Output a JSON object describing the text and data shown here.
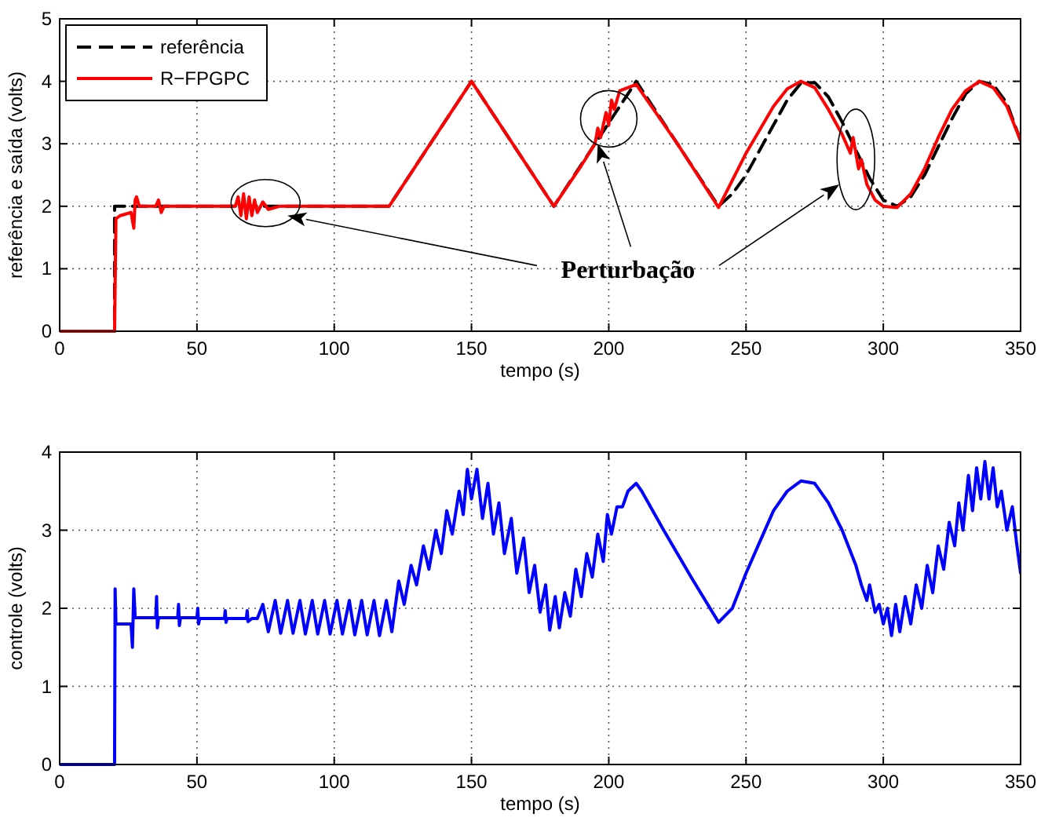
{
  "chart_data": [
    {
      "type": "line",
      "xlabel": "tempo (s)",
      "ylabel": "referência e saída (volts)",
      "xlim": [
        0,
        350
      ],
      "ylim": [
        0,
        5
      ],
      "xticks": [
        0,
        50,
        100,
        150,
        200,
        250,
        300,
        350
      ],
      "yticks": [
        0,
        1,
        2,
        3,
        4,
        5
      ],
      "grid": true,
      "legend": "top left",
      "marker": "none",
      "annotations": [
        "Perturbação"
      ],
      "series": [
        {
          "name": "referência",
          "color": "#000000",
          "line_style": "dashed",
          "x": [
            0,
            20,
            20,
            120,
            150,
            180,
            210,
            240,
            245,
            250,
            255,
            260,
            265,
            270,
            275,
            280,
            285,
            290,
            295,
            300,
            305,
            310,
            315,
            320,
            325,
            330,
            335,
            340,
            345,
            350
          ],
          "values": [
            0,
            0,
            2,
            2,
            4,
            2,
            4,
            2,
            2.2,
            2.5,
            2.9,
            3.3,
            3.7,
            3.97,
            3.98,
            3.75,
            3.35,
            2.9,
            2.45,
            2.1,
            2,
            2.15,
            2.5,
            2.95,
            3.4,
            3.8,
            4,
            3.95,
            3.65,
            3.05
          ]
        },
        {
          "name": "R−FPGPC",
          "color": "#ff0000",
          "line_style": "solid",
          "x": [
            0,
            20,
            20.5,
            22,
            26,
            27,
            27.5,
            28,
            29,
            35,
            36,
            37,
            38,
            60,
            64,
            65,
            66,
            67,
            68,
            69,
            70,
            71,
            72,
            74,
            76,
            80,
            120,
            135,
            150,
            165,
            180,
            190,
            195,
            196,
            197,
            199,
            200,
            201,
            202,
            204,
            210,
            225,
            240,
            250,
            260,
            265,
            270,
            275,
            280,
            285,
            288,
            289,
            291,
            292,
            294,
            297,
            300,
            305,
            310,
            315,
            320,
            325,
            330,
            335,
            340,
            345,
            350
          ],
          "values": [
            0,
            0,
            1.8,
            1.85,
            1.9,
            1.65,
            2.1,
            2.15,
            2,
            2,
            2.1,
            1.9,
            2,
            2,
            2,
            2.15,
            1.85,
            2.2,
            1.8,
            2.15,
            1.85,
            2.1,
            1.9,
            2.07,
            1.95,
            2,
            2,
            3,
            4,
            3,
            2,
            2.65,
            3,
            3.25,
            3.1,
            3.5,
            3.3,
            3.7,
            3.55,
            3.85,
            3.95,
            3,
            1.98,
            2.85,
            3.6,
            3.88,
            4,
            3.9,
            3.55,
            3.15,
            2.85,
            3.1,
            2.6,
            2.75,
            2.35,
            2.1,
            2,
            1.98,
            2.2,
            2.6,
            3.1,
            3.55,
            3.85,
            4,
            3.9,
            3.6,
            3.05
          ]
        }
      ]
    },
    {
      "type": "line",
      "xlabel": "tempo (s)",
      "ylabel": "controle (volts)",
      "xlim": [
        0,
        350
      ],
      "ylim": [
        0,
        4
      ],
      "xticks": [
        0,
        50,
        100,
        150,
        200,
        250,
        300,
        350
      ],
      "yticks": [
        0,
        1,
        2,
        3,
        4
      ],
      "grid": true,
      "legend": false,
      "marker": "none",
      "series": [
        {
          "color": "#0000ff",
          "line_style": "solid",
          "x": [
            0,
            20,
            20.2,
            20.5,
            26,
            26.5,
            27,
            27.5,
            35,
            35.3,
            35.6,
            36,
            43,
            43.3,
            43.6,
            44,
            50,
            50.3,
            50.6,
            51,
            60,
            60.3,
            60.6,
            61,
            68,
            68.3,
            68.6,
            70,
            72,
            74,
            76,
            78.5,
            80.5,
            83,
            85,
            87.5,
            89.5,
            92,
            94,
            96.5,
            98.5,
            101,
            103,
            105.5,
            107.5,
            110,
            112,
            114.5,
            116.5,
            119,
            121,
            123.5,
            125.5,
            128,
            130,
            132.5,
            134.5,
            137,
            139,
            141,
            143,
            145.5,
            147,
            148.5,
            150,
            152,
            154,
            156,
            158,
            160,
            162,
            164.5,
            166.5,
            169,
            171,
            173,
            175,
            177,
            178.5,
            180.5,
            182,
            184,
            186,
            188,
            190,
            192,
            194,
            196,
            198,
            199.5,
            201,
            203,
            205,
            207,
            210,
            212,
            220,
            230,
            240,
            245,
            250,
            255,
            260,
            265,
            270,
            275,
            280,
            285,
            290,
            292,
            294,
            295,
            297,
            298.5,
            300,
            301.5,
            303,
            304.5,
            306,
            308,
            310,
            312,
            314,
            316,
            318,
            320,
            322,
            324,
            326,
            327.5,
            329,
            331,
            332.5,
            334,
            335.5,
            337,
            338.5,
            340,
            341.5,
            343,
            345,
            347,
            348.5,
            350
          ],
          "values": [
            0,
            0,
            2.25,
            1.8,
            1.8,
            1.5,
            2.25,
            1.88,
            1.88,
            2.15,
            1.75,
            1.88,
            1.88,
            2.05,
            1.78,
            1.88,
            1.88,
            2,
            1.8,
            1.87,
            1.87,
            1.97,
            1.82,
            1.87,
            1.87,
            1.97,
            1.83,
            1.87,
            1.87,
            2.05,
            1.7,
            2.1,
            1.68,
            2.1,
            1.68,
            2.1,
            1.67,
            2.1,
            1.67,
            2.1,
            1.67,
            2.1,
            1.67,
            2.1,
            1.66,
            2.1,
            1.66,
            2.1,
            1.65,
            2.1,
            1.7,
            2.35,
            2.05,
            2.55,
            2.3,
            2.8,
            2.5,
            3,
            2.7,
            3.25,
            2.95,
            3.5,
            3.2,
            3.78,
            3.4,
            3.78,
            3.15,
            3.6,
            2.95,
            3.35,
            2.7,
            3.15,
            2.45,
            2.9,
            2.2,
            2.55,
            1.95,
            2.3,
            1.72,
            2.15,
            1.75,
            2.2,
            1.9,
            2.5,
            2.15,
            2.7,
            2.4,
            2.95,
            2.6,
            3.2,
            2.95,
            3.3,
            3.3,
            3.5,
            3.6,
            3.5,
            3,
            2.4,
            1.82,
            2,
            2.45,
            2.85,
            3.25,
            3.5,
            3.63,
            3.6,
            3.35,
            3,
            2.55,
            2.3,
            2.1,
            2.3,
            1.95,
            2.05,
            1.8,
            2,
            1.65,
            2.05,
            1.7,
            2.15,
            1.8,
            2.3,
            2,
            2.55,
            2.2,
            2.8,
            2.5,
            3.1,
            2.8,
            3.35,
            3,
            3.7,
            3.25,
            3.8,
            3.4,
            3.88,
            3.4,
            3.8,
            3.3,
            3.5,
            3,
            3.3,
            2.85,
            2.45
          ]
        }
      ]
    }
  ]
}
